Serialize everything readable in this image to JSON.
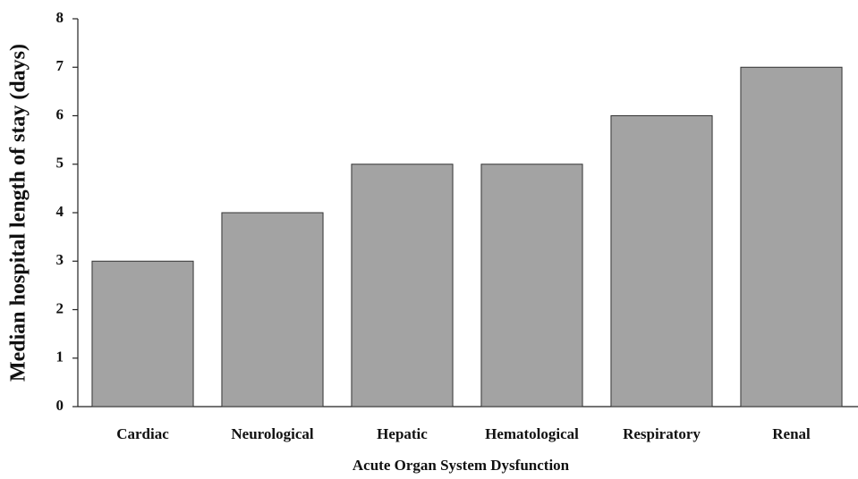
{
  "chart_data": {
    "type": "bar",
    "x_label": "Acute Organ System Dysfunction",
    "y_label": "Median hospital length of stay (days)",
    "categories": [
      "Cardiac",
      "Neurological",
      "Hepatic",
      "Hematological",
      "Respiratory",
      "Renal"
    ],
    "values": [
      3,
      4,
      5,
      5,
      6,
      7
    ],
    "color": "#a3a3a3",
    "ylim": [
      0,
      8
    ],
    "yticks": [
      0,
      1,
      2,
      3,
      4,
      5,
      6,
      7,
      8
    ],
    "grid": false
  }
}
